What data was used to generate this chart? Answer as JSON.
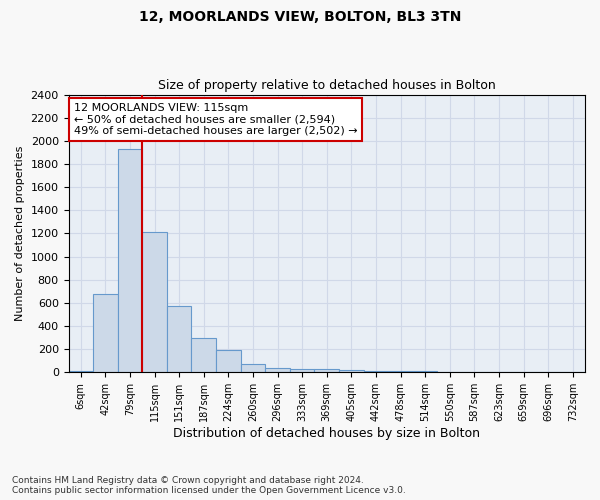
{
  "title1": "12, MOORLANDS VIEW, BOLTON, BL3 3TN",
  "title2": "Size of property relative to detached houses in Bolton",
  "xlabel": "Distribution of detached houses by size in Bolton",
  "ylabel": "Number of detached properties",
  "footnote": "Contains HM Land Registry data © Crown copyright and database right 2024.\nContains public sector information licensed under the Open Government Licence v3.0.",
  "bar_labels": [
    "6sqm",
    "42sqm",
    "79sqm",
    "115sqm",
    "151sqm",
    "187sqm",
    "224sqm",
    "260sqm",
    "296sqm",
    "333sqm",
    "369sqm",
    "405sqm",
    "442sqm",
    "478sqm",
    "514sqm",
    "550sqm",
    "587sqm",
    "623sqm",
    "659sqm",
    "696sqm",
    "732sqm"
  ],
  "bar_values": [
    10,
    680,
    1930,
    1210,
    570,
    300,
    195,
    70,
    40,
    30,
    25,
    20,
    15,
    10,
    8,
    5,
    4,
    3,
    2,
    2,
    2
  ],
  "bar_color": "#ccd9e8",
  "bar_edge_color": "#6699cc",
  "highlight_index": 3,
  "red_line_color": "#cc0000",
  "ylim": [
    0,
    2400
  ],
  "yticks": [
    0,
    200,
    400,
    600,
    800,
    1000,
    1200,
    1400,
    1600,
    1800,
    2000,
    2200,
    2400
  ],
  "annotation_line1": "12 MOORLANDS VIEW: 115sqm",
  "annotation_line2": "← 50% of detached houses are smaller (2,594)",
  "annotation_line3": "49% of semi-detached houses are larger (2,502) →",
  "annotation_box_color": "#ffffff",
  "annotation_border_color": "#cc0000",
  "grid_color": "#d0d8e8",
  "bg_color": "#e8eef5",
  "fig_bg_color": "#f8f8f8"
}
